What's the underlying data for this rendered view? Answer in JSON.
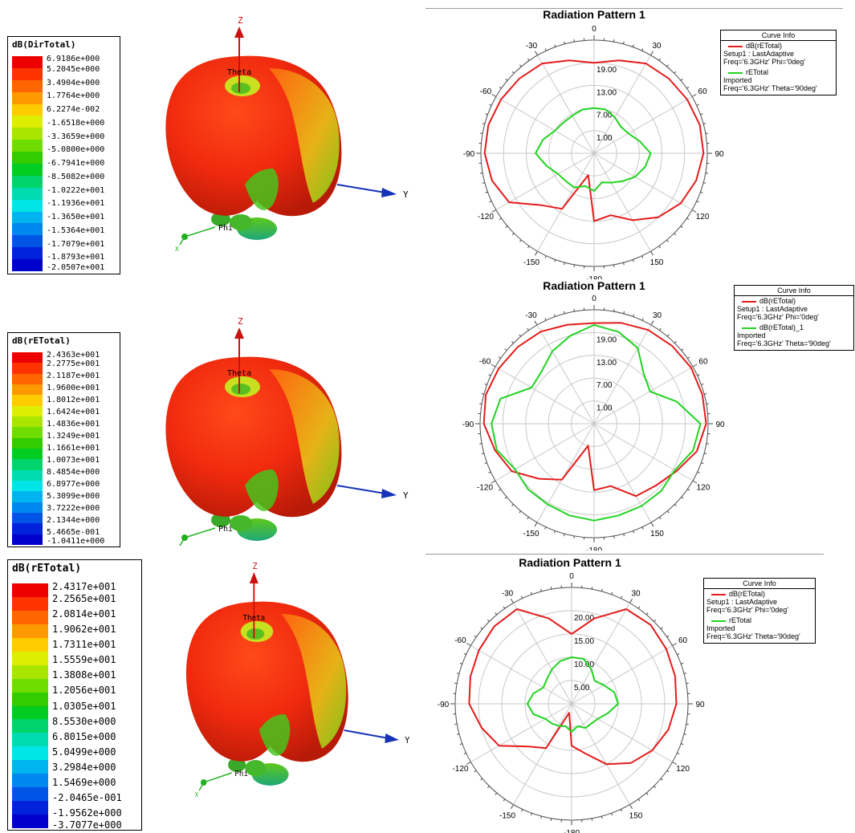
{
  "colors": {
    "red_curve": "#e51b1b",
    "green_curve": "#21d321",
    "axis_blue": "#1533b8",
    "axis_red": "#cc1010",
    "axis_green": "#22b022",
    "grid": "#c8c8c8"
  },
  "colormap": [
    "#ee0000",
    "#ff3300",
    "#ff6600",
    "#ff9900",
    "#ffcc00",
    "#ddee00",
    "#a8e600",
    "#70dd00",
    "#33cc00",
    "#00cc22",
    "#00d46a",
    "#00dcb0",
    "#00e6e6",
    "#00b4f0",
    "#0088ee",
    "#0055e6",
    "#0022dd",
    "#0000cc"
  ],
  "rows": [
    {
      "scale": {
        "title": "dB(DirTotal)",
        "values": [
          "6.9186e+000",
          "5.2045e+000",
          "3.4904e+000",
          "1.7764e+000",
          "6.2274e-002",
          "-1.6518e+000",
          "-3.3659e+000",
          "-5.0800e+000",
          "-6.7941e+000",
          "-8.5082e+000",
          "-1.0222e+001",
          "-1.1936e+001",
          "-1.3650e+001",
          "-1.5364e+001",
          "-1.7079e+001",
          "-1.8793e+001",
          "-2.0507e+001"
        ]
      },
      "axes3d": {
        "z": "Z",
        "y": "Y",
        "theta": "Theta",
        "phi": "Phi",
        "x": "X"
      },
      "chart_data": {
        "type": "polar",
        "title": "Radiation Pattern 1",
        "angle_ticks": [
          "0",
          "30",
          "60",
          "90",
          "120",
          "150",
          "-180",
          "-150",
          "-120",
          "-90",
          "-60",
          "-30"
        ],
        "radial_ticks": [
          "19.00",
          "13.00",
          "7.00",
          "1.00"
        ],
        "radial_range": [
          -5,
          25
        ],
        "angle": [
          0,
          15,
          30,
          45,
          60,
          75,
          90,
          105,
          120,
          135,
          150,
          165,
          180,
          -165,
          -150,
          -135,
          -120,
          -105,
          -90,
          -75,
          -60,
          -45,
          -30,
          -15
        ],
        "series": [
          {
            "name": "dB(rETotal)",
            "color": "red",
            "r": [
              19,
              20.5,
              22.5,
              23,
              23.5,
              24,
              24,
              23,
              21.5,
              19,
              15.5,
              12,
              13,
              1,
              12,
              14.5,
              21,
              23,
              24,
              24,
              23.5,
              23,
              22.5,
              20.5
            ]
          },
          {
            "name": "rETotal",
            "color": "green",
            "r": [
              7,
              7,
              6,
              5,
              5.5,
              7.5,
              10,
              9,
              7.5,
              5.5,
              4,
              3,
              5,
              4,
              5.5,
              5.5,
              6,
              8,
              10.5,
              9,
              7,
              6.5,
              6.5,
              7
            ]
          }
        ],
        "curve_info": {
          "header": "Curve Info",
          "entries": [
            {
              "line1": "dB(rETotal)",
              "line2": "Setup1 : LastAdaptive",
              "line3": "Freq='6.3GHz' Phi='0deg'"
            },
            {
              "line1": "rETotal",
              "line2": "Imported",
              "line3": "Freq='6.3GHz' Theta='90deg'"
            }
          ]
        }
      }
    },
    {
      "scale": {
        "title": "dB(rETotal)",
        "values": [
          "2.4363e+001",
          "2.2775e+001",
          "2.1187e+001",
          "1.9600e+001",
          "1.8012e+001",
          "1.6424e+001",
          "1.4836e+001",
          "1.3249e+001",
          "1.1661e+001",
          "1.0073e+001",
          "8.4854e+000",
          "6.8977e+000",
          "5.3099e+000",
          "3.7222e+000",
          "2.1344e+000",
          "5.4665e-001",
          "-1.0411e+000"
        ]
      },
      "axes3d": {
        "z": "Z",
        "y": "Y",
        "theta": "Theta",
        "phi": "Phi",
        "x": "X"
      },
      "chart_data": {
        "type": "polar",
        "title": "Radiation Pattern 1",
        "angle_ticks": [
          "0",
          "30",
          "60",
          "90",
          "120",
          "150",
          "-180",
          "-150",
          "-120",
          "-90",
          "-60",
          "-30"
        ],
        "radial_ticks": [
          "19.00",
          "13.00",
          "7.00",
          "1.00"
        ],
        "radial_range": [
          -5,
          25
        ],
        "angle": [
          0,
          15,
          30,
          45,
          60,
          75,
          90,
          105,
          120,
          135,
          150,
          165,
          180,
          -165,
          -150,
          -135,
          -120,
          -105,
          -90,
          -75,
          -60,
          -45,
          -30,
          -15
        ],
        "series": [
          {
            "name": "dB(rETotal)",
            "color": "red",
            "r": [
              21.5,
              22.5,
              23.5,
              24,
              24.5,
              24.5,
              24.5,
              23,
              20,
              18,
              17,
              12,
              12.5,
              1,
              12,
              15.5,
              20,
              22,
              24,
              24.5,
              24,
              23.5,
              23,
              22
            ]
          },
          {
            "name": "dB(rETotal)_1",
            "color": "green",
            "r": [
              21,
              20,
              18,
              13.5,
              12,
              17.5,
              23,
              22,
              19.5,
              20,
              20,
              20,
              20.5,
              20,
              19.5,
              19.5,
              19,
              21.5,
              22,
              20.5,
              14,
              14.5,
              17,
              19
            ]
          }
        ],
        "curve_info": {
          "header": "Curve Info",
          "entries": [
            {
              "line1": "dB(rETotal)",
              "line2": "Setup1 : LastAdaptive",
              "line3": "Freq='6.3GHz' Phi='0deg'"
            },
            {
              "line1": "dB(rETotal)_1",
              "line2": "Imported",
              "line3": "Freq='6.3GHz' Theta='90deg'"
            }
          ]
        }
      }
    },
    {
      "scale": {
        "title": "dB(rETotal)",
        "values": [
          "2.4317e+001",
          "2.2565e+001",
          "2.0814e+001",
          "1.9062e+001",
          "1.7311e+001",
          "1.5559e+001",
          "1.3808e+001",
          "1.2056e+001",
          "1.0305e+001",
          "8.5530e+000",
          "6.8015e+000",
          "5.0499e+000",
          "3.2984e+000",
          "1.5469e+000",
          "-2.0465e-001",
          "-1.9562e+000",
          "-3.7077e+000"
        ]
      },
      "axes3d": {
        "z": "Z",
        "y": "Y",
        "theta": "Theta",
        "phi": "Phi",
        "x": "X"
      },
      "chart_data": {
        "type": "polar",
        "title": "Radiation Pattern 1",
        "angle_ticks": [
          "0",
          "30",
          "60",
          "90",
          "120",
          "150",
          "-180",
          "-150",
          "-120",
          "-90",
          "-60",
          "-30"
        ],
        "radial_ticks": [
          "20.00",
          "15.00",
          "10.00",
          "5.00"
        ],
        "radial_range": [
          0,
          25
        ],
        "angle": [
          0,
          15,
          30,
          45,
          60,
          75,
          90,
          105,
          120,
          135,
          150,
          165,
          180,
          -165,
          -150,
          -135,
          -120,
          -105,
          -90,
          -75,
          -60,
          -45,
          -30,
          -15
        ],
        "series": [
          {
            "name": "dB(rETotal)",
            "color": "red",
            "r": [
              15,
              19,
              23.5,
              24,
              23.5,
              23,
              22.5,
              21.5,
              20,
              18,
              15,
              11,
              9,
              2,
              11,
              13,
              18,
              20,
              22,
              22.5,
              23,
              23.5,
              23.5,
              19
            ]
          },
          {
            "name": "rETotal",
            "color": "green",
            "r": [
              10,
              10,
              8.5,
              7,
              8,
              9.5,
              10,
              8,
              6.5,
              6,
              6,
              5,
              6,
              5,
              5.5,
              6,
              6.5,
              8.5,
              9.5,
              8.5,
              7,
              7.5,
              8.5,
              9.5
            ]
          }
        ],
        "curve_info": {
          "header": "Curve Info",
          "entries": [
            {
              "line1": "dB(rETotal)",
              "line2": "Setup1 : LastAdaptive",
              "line3": "Freq='6.3GHz' Phi='0deg'"
            },
            {
              "line1": "rETotal",
              "line2": "Imported",
              "line3": "Freq='6.3GHz' Theta='90deg'"
            }
          ]
        }
      }
    }
  ]
}
